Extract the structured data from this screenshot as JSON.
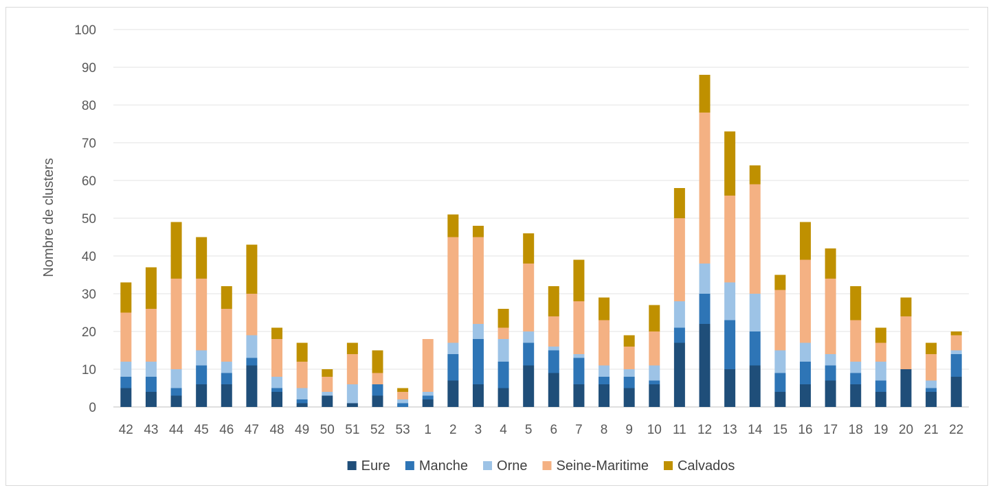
{
  "chart_data": {
    "type": "bar",
    "stacked": true,
    "title": "",
    "xlabel": "",
    "ylabel": "Nombre de clusters",
    "ylim": [
      0,
      100
    ],
    "yticks": [
      0,
      10,
      20,
      30,
      40,
      50,
      60,
      70,
      80,
      90,
      100
    ],
    "grid": true,
    "legend": "bottom",
    "categories": [
      "42",
      "43",
      "44",
      "45",
      "46",
      "47",
      "48",
      "49",
      "50",
      "51",
      "52",
      "53",
      "1",
      "2",
      "3",
      "4",
      "5",
      "6",
      "7",
      "8",
      "9",
      "10",
      "11",
      "12",
      "13",
      "14",
      "15",
      "16",
      "17",
      "18",
      "19",
      "20",
      "21",
      "22"
    ],
    "series": [
      {
        "name": "Eure",
        "color": "#1f4e79",
        "values": [
          5,
          4,
          3,
          6,
          6,
          11,
          4,
          1,
          3,
          1,
          3,
          0,
          2,
          7,
          6,
          5,
          11,
          9,
          6,
          6,
          5,
          6,
          17,
          22,
          10,
          11,
          4,
          6,
          7,
          6,
          4,
          10,
          4,
          8
        ]
      },
      {
        "name": "Manche",
        "color": "#2e75b6",
        "values": [
          3,
          4,
          2,
          5,
          3,
          2,
          1,
          1,
          0,
          0,
          3,
          1,
          1,
          7,
          12,
          7,
          6,
          6,
          7,
          2,
          3,
          1,
          4,
          8,
          13,
          9,
          5,
          6,
          4,
          3,
          3,
          0,
          1,
          6
        ]
      },
      {
        "name": "Orne",
        "color": "#9dc3e6",
        "values": [
          4,
          4,
          5,
          4,
          3,
          6,
          3,
          3,
          1,
          5,
          0,
          1,
          1,
          3,
          4,
          6,
          3,
          1,
          1,
          3,
          2,
          4,
          7,
          8,
          10,
          10,
          6,
          5,
          3,
          3,
          5,
          0,
          2,
          1
        ]
      },
      {
        "name": "Seine-Maritime",
        "color": "#f4b183",
        "values": [
          13,
          14,
          24,
          19,
          14,
          11,
          10,
          7,
          4,
          8,
          3,
          2,
          14,
          28,
          23,
          3,
          18,
          8,
          14,
          12,
          6,
          9,
          22,
          40,
          23,
          29,
          16,
          22,
          20,
          11,
          5,
          14,
          7,
          4
        ]
      },
      {
        "name": "Calvados",
        "color": "#bf9000",
        "values": [
          8,
          11,
          15,
          11,
          6,
          13,
          3,
          5,
          2,
          3,
          6,
          1,
          0,
          6,
          3,
          5,
          8,
          8,
          11,
          6,
          3,
          7,
          8,
          10,
          17,
          5,
          4,
          10,
          8,
          9,
          4,
          5,
          3,
          1
        ]
      }
    ]
  }
}
